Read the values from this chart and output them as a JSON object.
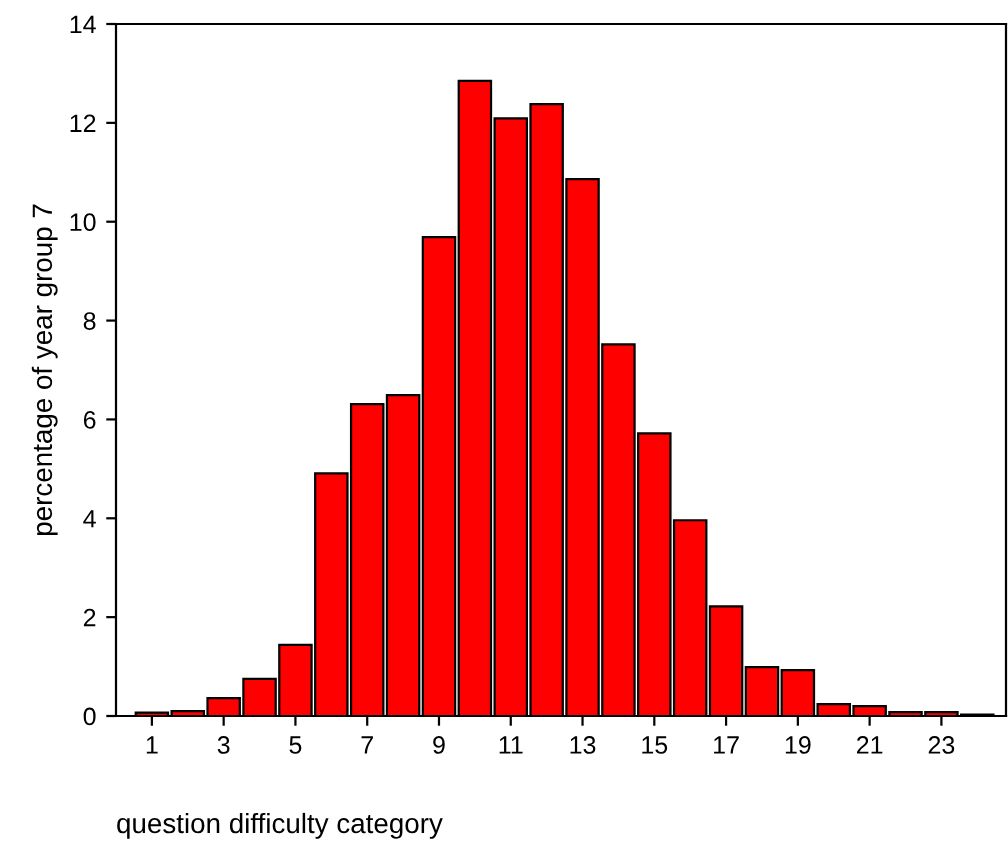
{
  "chart_data": {
    "type": "bar",
    "xlabel": "question difficulty category",
    "ylabel": "percentage of year group 7",
    "categories": [
      "1",
      null,
      "3",
      null,
      "5",
      null,
      "7",
      null,
      "9",
      null,
      "11",
      null,
      "13",
      null,
      "15",
      null,
      "17",
      null,
      "19",
      null,
      "21",
      null,
      "23",
      null
    ],
    "values": [
      0.07,
      0.1,
      0.36,
      0.75,
      1.44,
      4.91,
      6.31,
      6.49,
      9.69,
      12.85,
      12.09,
      12.38,
      10.86,
      7.52,
      5.72,
      3.96,
      2.22,
      0.99,
      0.93,
      0.24,
      0.2,
      0.08,
      0.08,
      0.03
    ],
    "color": "#ff0000",
    "ylim": [
      0,
      14
    ],
    "yticks": [
      0,
      2,
      4,
      6,
      8,
      10,
      12,
      14
    ],
    "grid": false,
    "legend": false
  }
}
